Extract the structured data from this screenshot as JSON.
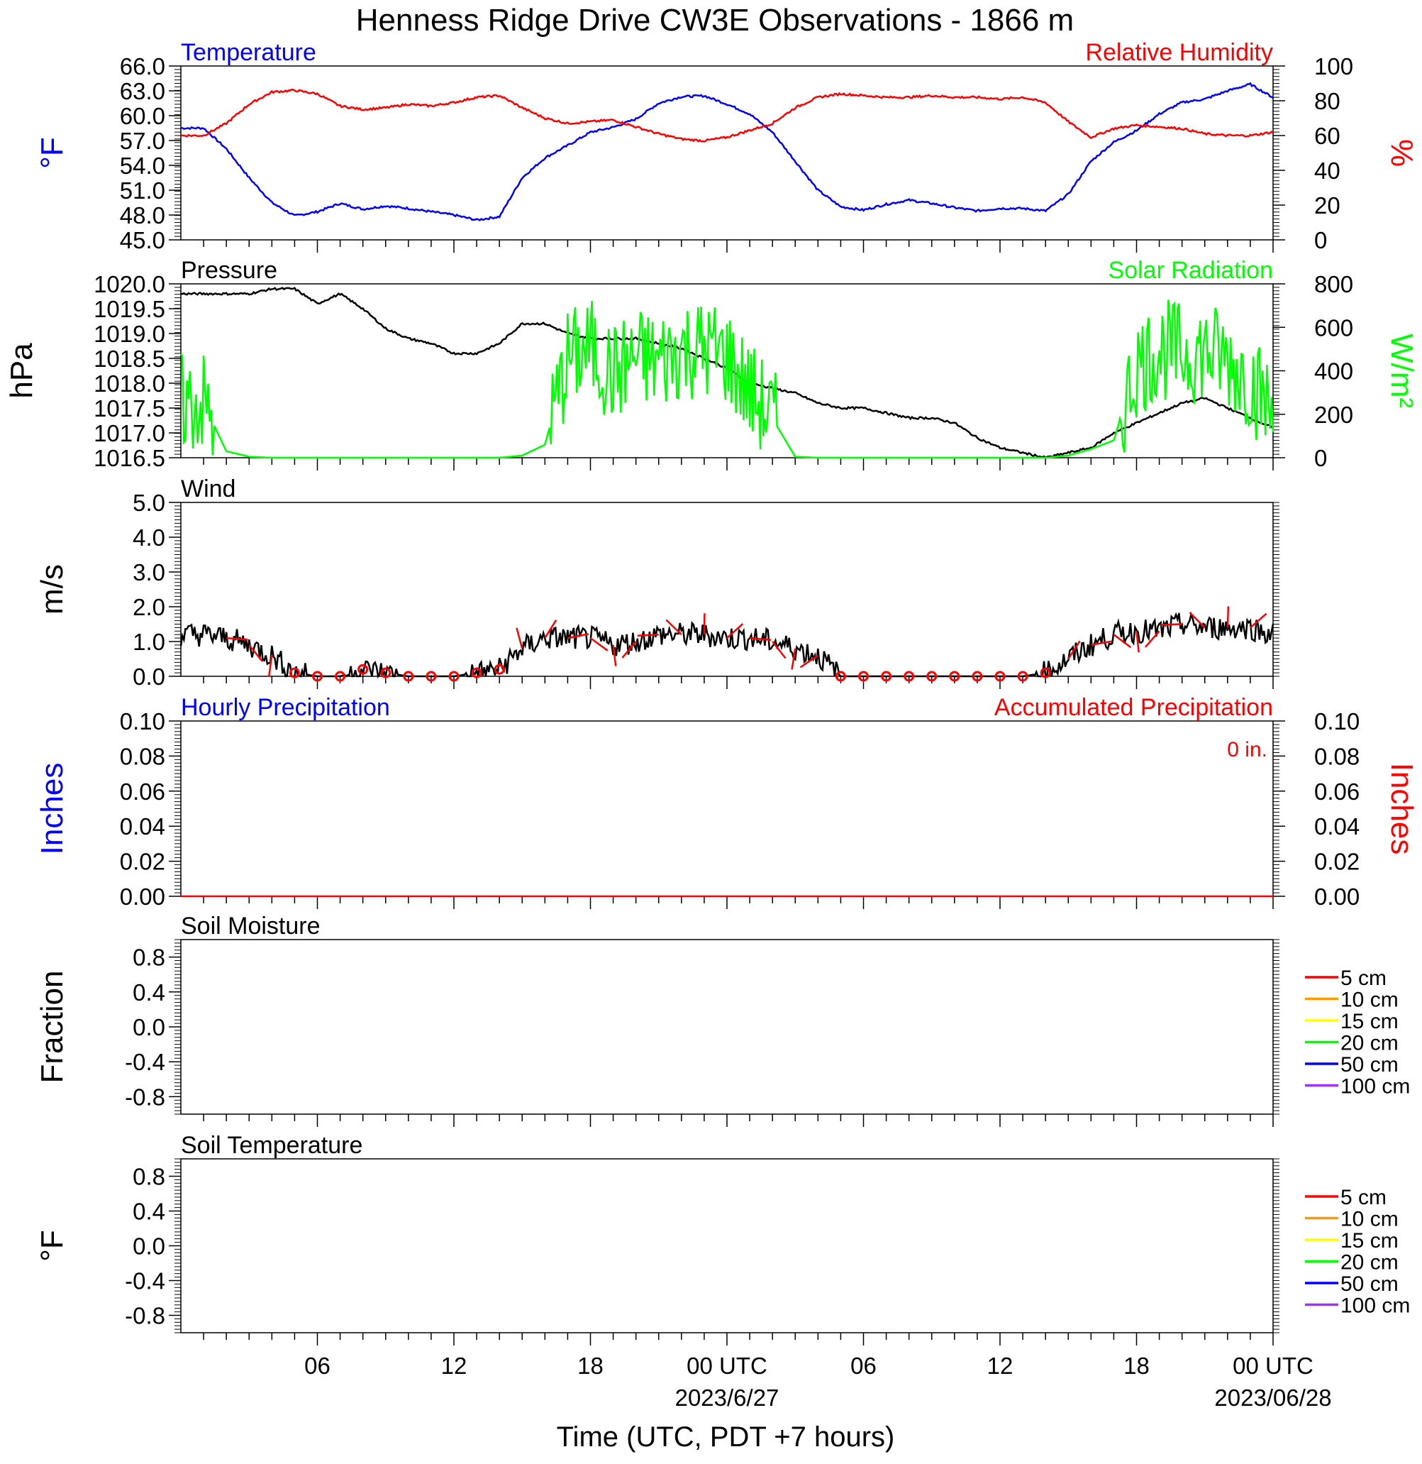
{
  "title": "Henness Ridge Drive CW3E Observations - 1866 m",
  "x_axis": {
    "label": "Time (UTC, PDT +7 hours)",
    "tick_labels": [
      "06",
      "12",
      "18",
      "00 UTC",
      "06",
      "12",
      "18",
      "00 UTC"
    ],
    "date_labels": [
      "2023/6/27",
      "2023/06/28"
    ]
  },
  "colors": {
    "temperature": "#0000ff",
    "humidity": "#ff0000",
    "pressure": "#000000",
    "solar": "#00ff00",
    "wind": "#000000",
    "wind_barb": "#ff0000",
    "hourly_precip": "#0000ff",
    "accum_precip": "#ff0000"
  },
  "soil_legend": [
    {
      "label": "5 cm",
      "color": "#ff0000"
    },
    {
      "label": "10 cm",
      "color": "#ff9900"
    },
    {
      "label": "15 cm",
      "color": "#ffff00"
    },
    {
      "label": "20 cm",
      "color": "#00ff00"
    },
    {
      "label": "50 cm",
      "color": "#0000ff"
    },
    {
      "label": "100 cm",
      "color": "#9933ff"
    }
  ],
  "chart_data": [
    {
      "type": "line",
      "panel": "temperature-humidity",
      "left_title": "Temperature",
      "right_title": "Relative Humidity",
      "ylabel_left": "°F",
      "ylabel_right": "%",
      "ylim_left": [
        45,
        66
      ],
      "ylim_right": [
        0,
        100
      ],
      "yticks_left": [
        "66.0",
        "63.0",
        "60.0",
        "57.0",
        "54.0",
        "51.0",
        "48.0",
        "45.0"
      ],
      "yticks_right": [
        "100",
        "80",
        "60",
        "40",
        "20",
        "0"
      ],
      "x_hours": [
        1,
        2,
        3,
        4,
        5,
        6,
        7,
        8,
        9,
        10,
        11,
        12,
        13,
        14,
        15,
        16,
        17,
        18,
        19,
        20,
        21,
        22,
        23,
        24,
        25,
        26,
        27,
        28,
        29,
        30,
        31,
        32,
        33,
        34,
        35,
        36,
        37,
        38,
        39,
        40,
        41,
        42,
        43,
        44,
        45,
        46,
        47,
        48
      ],
      "series": [
        {
          "name": "Temperature",
          "axis": "left",
          "color": "#0000ff",
          "values": [
            58.5,
            56.0,
            52.5,
            49.5,
            47.9,
            48.4,
            49.4,
            48.7,
            49.1,
            48.8,
            48.4,
            48.0,
            47.4,
            47.8,
            52.5,
            54.9,
            56.4,
            58.0,
            58.6,
            59.6,
            61.5,
            62.3,
            62.4,
            61.4,
            60.2,
            58.0,
            54.5,
            51.0,
            49.0,
            48.6,
            49.3,
            49.8,
            49.4,
            48.9,
            48.5,
            48.8,
            48.8,
            48.5,
            50.5,
            54.5,
            56.8,
            58.2,
            60.2,
            61.6,
            62.0,
            63.0,
            63.8,
            62.2
          ]
        },
        {
          "name": "Relative Humidity",
          "axis": "right",
          "color": "#ff0000",
          "values": [
            60,
            67,
            78,
            85,
            86,
            84,
            77,
            75,
            76,
            78,
            77,
            79,
            82,
            83,
            76,
            70,
            67,
            68,
            69,
            65,
            61,
            58,
            57,
            59,
            63,
            67,
            76,
            82,
            84,
            83,
            82,
            82,
            83,
            82,
            82,
            81,
            82,
            79,
            68,
            59,
            64,
            66,
            65,
            64,
            61,
            60,
            60,
            62
          ]
        }
      ]
    },
    {
      "type": "line",
      "panel": "pressure-solar",
      "left_title": "Pressure",
      "right_title": "Solar Radiation",
      "ylabel_left": "hPa",
      "ylabel_right": "W/m²",
      "ylim_left": [
        1016.5,
        1020.0
      ],
      "ylim_right": [
        0,
        800
      ],
      "yticks_left": [
        "1020.0",
        "1019.5",
        "1019.0",
        "1018.5",
        "1018.0",
        "1017.5",
        "1017.0",
        "1016.5"
      ],
      "yticks_right": [
        "800",
        "600",
        "400",
        "200",
        "0"
      ],
      "x_hours": [
        1,
        2,
        3,
        4,
        5,
        6,
        7,
        8,
        9,
        10,
        11,
        12,
        13,
        14,
        15,
        16,
        17,
        18,
        19,
        20,
        21,
        22,
        23,
        24,
        25,
        26,
        27,
        28,
        29,
        30,
        31,
        32,
        33,
        34,
        35,
        36,
        37,
        38,
        39,
        40,
        41,
        42,
        43,
        44,
        45,
        46,
        47,
        48
      ],
      "series": [
        {
          "name": "Pressure",
          "axis": "left",
          "color": "#000000",
          "values": [
            1019.8,
            1019.8,
            1019.8,
            1019.9,
            1019.9,
            1019.6,
            1019.8,
            1019.5,
            1019.1,
            1018.9,
            1018.8,
            1018.6,
            1018.6,
            1018.8,
            1019.2,
            1019.2,
            1019.0,
            1018.9,
            1018.9,
            1018.9,
            1018.8,
            1018.7,
            1018.5,
            1018.3,
            1018.0,
            1017.9,
            1017.8,
            1017.6,
            1017.5,
            1017.5,
            1017.4,
            1017.3,
            1017.3,
            1017.2,
            1016.9,
            1016.7,
            1016.6,
            1016.5,
            1016.6,
            1016.7,
            1017.0,
            1017.2,
            1017.4,
            1017.6,
            1017.7,
            1017.5,
            1017.3,
            1017.1
          ]
        },
        {
          "name": "Solar Radiation",
          "axis": "right",
          "color": "#00ff00",
          "values": [
            250,
            30,
            5,
            0,
            0,
            0,
            0,
            0,
            0,
            0,
            0,
            0,
            0,
            0,
            10,
            60,
            450,
            500,
            380,
            460,
            440,
            500,
            500,
            470,
            300,
            180,
            5,
            0,
            0,
            0,
            0,
            0,
            0,
            0,
            0,
            0,
            0,
            0,
            10,
            40,
            80,
            420,
            500,
            480,
            490,
            450,
            360,
            200
          ]
        }
      ]
    },
    {
      "type": "line",
      "panel": "wind",
      "left_title": "Wind",
      "ylabel_left": "m/s",
      "ylim_left": [
        0,
        5
      ],
      "yticks_left": [
        "5.0",
        "4.0",
        "3.0",
        "2.0",
        "1.0",
        "0.0"
      ],
      "x_hours": [
        1,
        2,
        3,
        4,
        5,
        6,
        7,
        8,
        9,
        10,
        11,
        12,
        13,
        14,
        15,
        16,
        17,
        18,
        19,
        20,
        21,
        22,
        23,
        24,
        25,
        26,
        27,
        28,
        29,
        30,
        31,
        32,
        33,
        34,
        35,
        36,
        37,
        38,
        39,
        40,
        41,
        42,
        43,
        44,
        45,
        46,
        47,
        48
      ],
      "series": [
        {
          "name": "Wind speed",
          "axis": "left",
          "color": "#000000",
          "values": [
            1.2,
            1.1,
            0.9,
            0.6,
            0.1,
            0.0,
            0.0,
            0.2,
            0.1,
            0.0,
            0.0,
            0.0,
            0.1,
            0.2,
            0.8,
            1.1,
            1.1,
            1.1,
            0.9,
            1.0,
            1.2,
            1.2,
            1.2,
            1.1,
            1.1,
            1.0,
            0.8,
            0.6,
            0.0,
            0.0,
            0.0,
            0.0,
            0.0,
            0.0,
            0.0,
            0.0,
            0.0,
            0.1,
            0.5,
            0.9,
            1.2,
            1.3,
            1.3,
            1.5,
            1.4,
            1.4,
            1.4,
            1.2
          ]
        }
      ]
    },
    {
      "type": "line",
      "panel": "precipitation",
      "left_title": "Hourly Precipitation",
      "right_title": "Accumulated Precipitation",
      "annotation": "0 in.",
      "ylabel_left": "Inches",
      "ylabel_right": "Inches",
      "ylim_left": [
        0,
        0.1
      ],
      "ylim_right": [
        0,
        0.1
      ],
      "yticks_left": [
        "0.10",
        "0.08",
        "0.06",
        "0.04",
        "0.02",
        "0.00"
      ],
      "yticks_right": [
        "0.10",
        "0.08",
        "0.06",
        "0.04",
        "0.02",
        "0.00"
      ],
      "series": [
        {
          "name": "Accumulated Precipitation",
          "axis": "right",
          "color": "#ff0000",
          "values": [
            0,
            0
          ]
        }
      ]
    },
    {
      "type": "line",
      "panel": "soil-moisture",
      "left_title": "Soil Moisture",
      "ylabel_left": "Fraction",
      "ylim_left": [
        -1.0,
        1.0
      ],
      "yticks_left": [
        "0.8",
        "0.4",
        "0.0",
        "-0.4",
        "-0.8"
      ],
      "series": []
    },
    {
      "type": "line",
      "panel": "soil-temperature",
      "left_title": "Soil Temperature",
      "ylabel_left": "°F",
      "ylim_left": [
        -1.0,
        1.0
      ],
      "yticks_left": [
        "0.8",
        "0.4",
        "0.0",
        "-0.4",
        "-0.8"
      ],
      "series": []
    }
  ]
}
